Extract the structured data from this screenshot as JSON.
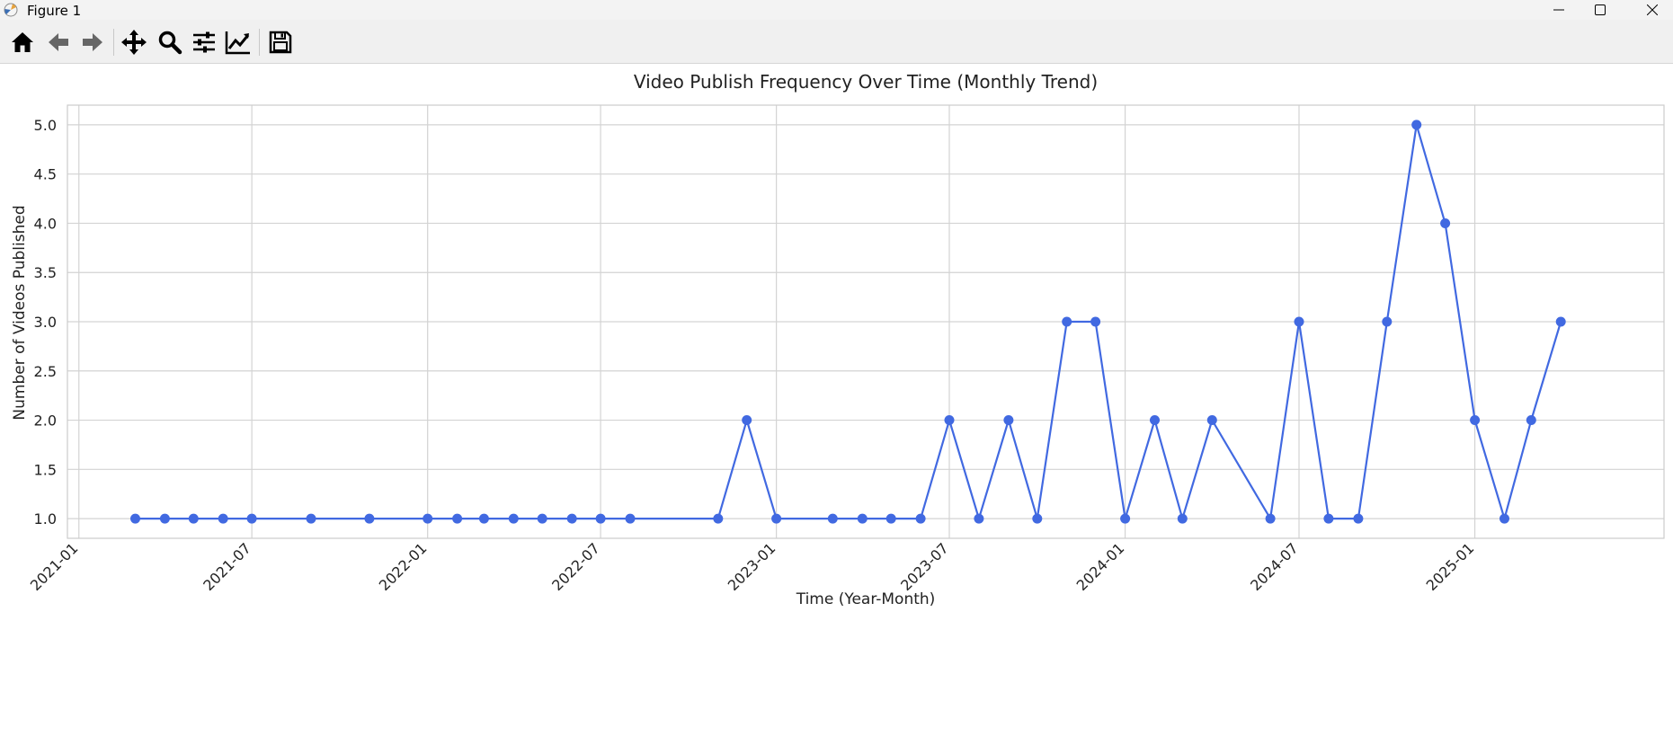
{
  "window": {
    "title": "Figure 1",
    "icons": [
      "matplotlib-icon",
      "minimize-icon",
      "maximize-icon",
      "close-icon"
    ]
  },
  "toolbar": {
    "buttons": [
      "home-icon",
      "back-arrow-icon",
      "forward-arrow-icon",
      "pan-icon",
      "zoom-icon",
      "configure-subplots-icon",
      "edit-axes-icon",
      "save-icon"
    ]
  },
  "chart_data": {
    "type": "line",
    "title": "Video Publish Frequency Over Time (Monthly Trend)",
    "xlabel": "Time (Year-Month)",
    "ylabel": "Number of Videos Published",
    "x_ticks": [
      "2021-01",
      "2021-07",
      "2022-01",
      "2022-07",
      "2023-01",
      "2023-07",
      "2024-01",
      "2024-07",
      "2025-01"
    ],
    "y_ticks": [
      "1.0",
      "1.5",
      "2.0",
      "2.5",
      "3.0",
      "3.5",
      "4.0",
      "4.5",
      "5.0"
    ],
    "ylim": [
      0.8,
      5.2
    ],
    "xlim": [
      "2020-12-20",
      "2025-07-18"
    ],
    "grid": true,
    "line_color": "#4169e1",
    "x": [
      "2021-03",
      "2021-04",
      "2021-05",
      "2021-06",
      "2021-07",
      "2021-09",
      "2021-11",
      "2022-01",
      "2022-02",
      "2022-03",
      "2022-04",
      "2022-05",
      "2022-06",
      "2022-07",
      "2022-08",
      "2022-11",
      "2022-12",
      "2023-01",
      "2023-03",
      "2023-04",
      "2023-05",
      "2023-06",
      "2023-07",
      "2023-08",
      "2023-09",
      "2023-10",
      "2023-11",
      "2023-12",
      "2024-01",
      "2024-02",
      "2024-03",
      "2024-04",
      "2024-06",
      "2024-07",
      "2024-08",
      "2024-09",
      "2024-10",
      "2024-11",
      "2024-12",
      "2025-01",
      "2025-02",
      "2025-03",
      "2025-04"
    ],
    "values": [
      1,
      1,
      1,
      1,
      1,
      1,
      1,
      1,
      1,
      1,
      1,
      1,
      1,
      1,
      1,
      1,
      2,
      1,
      1,
      1,
      1,
      1,
      2,
      1,
      2,
      1,
      3,
      3,
      1,
      2,
      1,
      2,
      1,
      3,
      1,
      1,
      3,
      5,
      4,
      2,
      1,
      2,
      3
    ]
  }
}
